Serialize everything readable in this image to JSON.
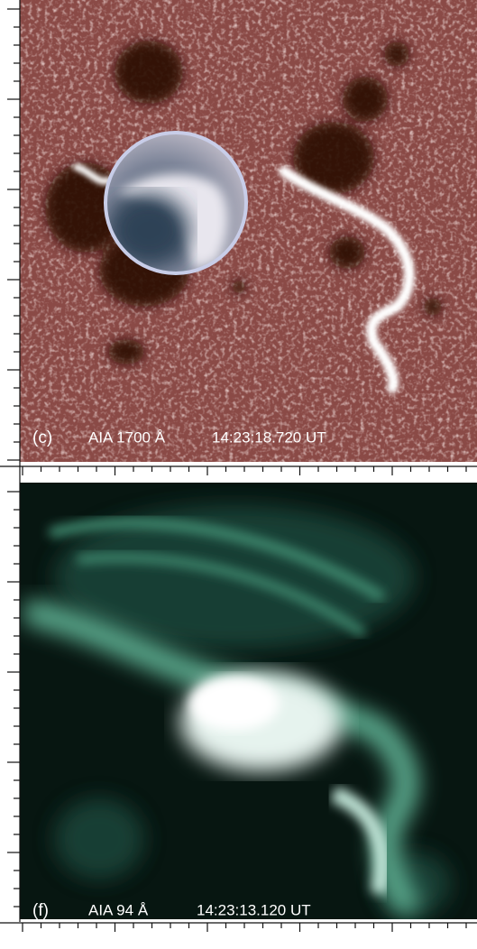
{
  "panels": [
    {
      "letter": "(c)",
      "instrument": "AIA 1700 Å",
      "time": "14:23:18.720 UT"
    },
    {
      "letter": "(f)",
      "instrument": "AIA 94 Å",
      "time": "14:23:13.120 UT"
    }
  ]
}
